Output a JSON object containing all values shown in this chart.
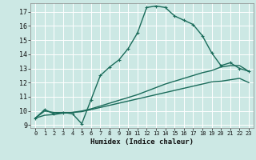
{
  "xlabel": "Humidex (Indice chaleur)",
  "bg_color": "#cce8e4",
  "grid_color": "#ffffff",
  "line_color": "#1a6b5a",
  "xlim": [
    -0.5,
    23.5
  ],
  "ylim": [
    8.8,
    17.6
  ],
  "yticks": [
    9,
    10,
    11,
    12,
    13,
    14,
    15,
    16,
    17
  ],
  "xticks": [
    0,
    1,
    2,
    3,
    4,
    5,
    6,
    7,
    8,
    9,
    10,
    11,
    12,
    13,
    14,
    15,
    16,
    17,
    18,
    19,
    20,
    21,
    22,
    23
  ],
  "main_line_x": [
    0,
    1,
    2,
    3,
    4,
    5,
    6,
    7,
    8,
    9,
    10,
    11,
    12,
    13,
    14,
    15,
    16,
    17,
    18,
    19,
    20,
    21,
    22,
    23
  ],
  "main_line_y": [
    9.5,
    10.1,
    9.8,
    9.9,
    9.8,
    9.1,
    10.8,
    12.5,
    13.1,
    13.6,
    14.4,
    15.5,
    17.3,
    17.4,
    17.3,
    16.7,
    16.4,
    16.1,
    15.3,
    14.1,
    13.2,
    13.4,
    13.0,
    12.8
  ],
  "lower_line1_x": [
    0,
    1,
    2,
    3,
    4,
    5,
    6,
    7,
    8,
    9,
    10,
    11,
    12,
    13,
    14,
    15,
    16,
    17,
    18,
    19,
    20,
    21,
    22,
    23
  ],
  "lower_line1_y": [
    9.5,
    10.0,
    9.9,
    9.9,
    9.9,
    10.0,
    10.15,
    10.35,
    10.55,
    10.75,
    10.95,
    11.15,
    11.4,
    11.65,
    11.9,
    12.1,
    12.3,
    12.5,
    12.7,
    12.85,
    13.1,
    13.2,
    13.2,
    12.8
  ],
  "lower_line2_x": [
    0,
    1,
    2,
    3,
    4,
    5,
    6,
    7,
    8,
    9,
    10,
    11,
    12,
    13,
    14,
    15,
    16,
    17,
    18,
    19,
    20,
    21,
    22,
    23
  ],
  "lower_line2_y": [
    9.5,
    9.7,
    9.75,
    9.85,
    9.9,
    9.95,
    10.1,
    10.25,
    10.4,
    10.55,
    10.7,
    10.85,
    11.0,
    11.15,
    11.3,
    11.45,
    11.6,
    11.75,
    11.9,
    12.05,
    12.1,
    12.2,
    12.3,
    12.0
  ],
  "marker_style": "+",
  "marker_size": 3.5,
  "line_width": 1.0
}
